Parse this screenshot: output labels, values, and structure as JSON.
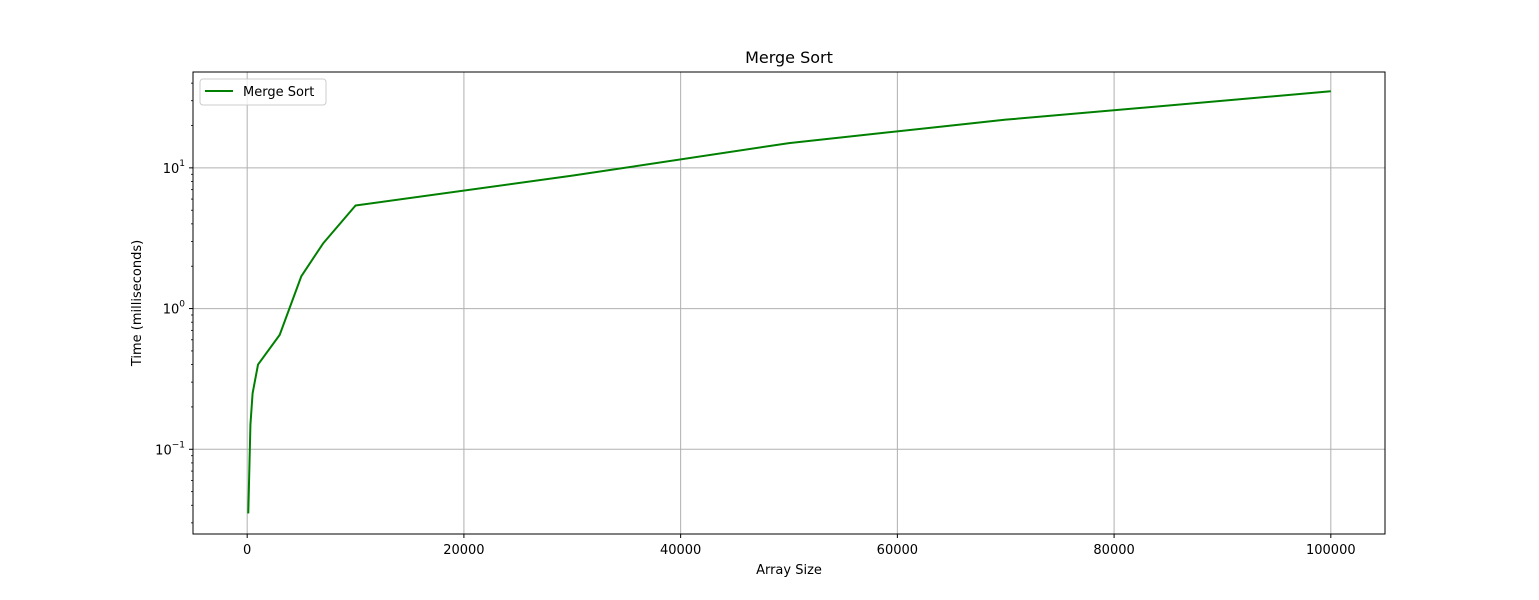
{
  "chart_data": {
    "type": "line",
    "title": "Merge Sort",
    "xlabel": "Array Size",
    "ylabel": "Time (milliseconds)",
    "xscale": "linear",
    "yscale": "log",
    "xlim": [
      -5000,
      105000
    ],
    "ylim": [
      0.025,
      48
    ],
    "xticks": [
      {
        "value": 0,
        "label": "0"
      },
      {
        "value": 20000,
        "label": "20000"
      },
      {
        "value": 40000,
        "label": "40000"
      },
      {
        "value": 60000,
        "label": "60000"
      },
      {
        "value": 80000,
        "label": "80000"
      },
      {
        "value": 100000,
        "label": "100000"
      }
    ],
    "yticks": [
      {
        "value": 0.1,
        "base": "10",
        "exp": "−1"
      },
      {
        "value": 1,
        "base": "10",
        "exp": "0"
      },
      {
        "value": 10,
        "base": "10",
        "exp": "1"
      }
    ],
    "grid": true,
    "legend_position": "top-left",
    "series": [
      {
        "name": "Merge Sort",
        "color": "#008000",
        "x": [
          100,
          300,
          500,
          1000,
          3000,
          5000,
          7000,
          10000,
          30000,
          50000,
          70000,
          100000
        ],
        "y": [
          0.035,
          0.15,
          0.25,
          0.4,
          0.65,
          1.7,
          2.9,
          5.4,
          8.8,
          15,
          22,
          35
        ]
      }
    ]
  }
}
